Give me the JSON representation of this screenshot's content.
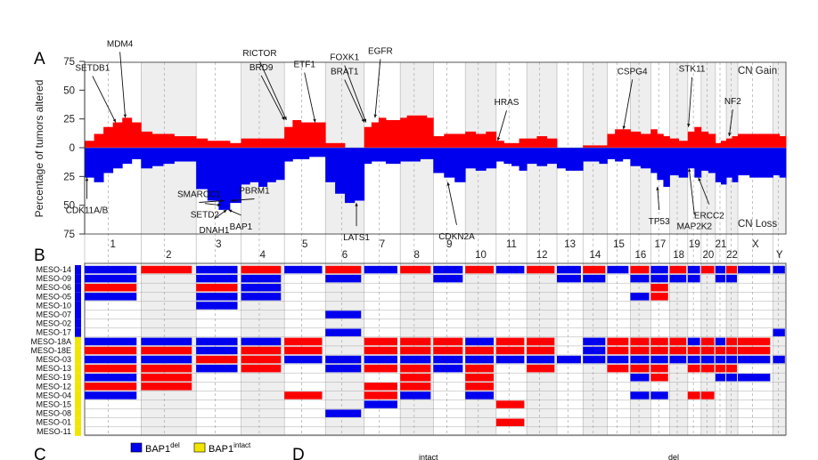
{
  "panel_labels": {
    "a": "A",
    "b": "B",
    "c": "C",
    "d": "D"
  },
  "legend_gain": "CN Gain",
  "legend_loss": "CN Loss",
  "bottom_legend": {
    "del_label": "BAP1",
    "del_sup": "del",
    "intact_label": "BAP1",
    "intact_sup": "intact",
    "del_color": "#0000ee",
    "intact_color": "#f2e600"
  },
  "panel_d_fragments": {
    "left": "intact",
    "right": "del"
  },
  "colors": {
    "gain": "#ff0000",
    "loss": "#0000ee",
    "band": "#eeeeee",
    "neutral": "#f6f6f6"
  },
  "chart_data": {
    "type": "bar",
    "ylabel": "Percentage of tumors altered",
    "yticks": [
      "75",
      "50",
      "25",
      "0",
      "25",
      "50",
      "75"
    ],
    "ylim": [
      -75,
      75
    ],
    "chromosomes_odd": [
      "1",
      "3",
      "5",
      "7",
      "9",
      "11",
      "13",
      "15",
      "17",
      "19",
      "21",
      "X"
    ],
    "chromosomes_even": [
      "2",
      "4",
      "6",
      "8",
      "10",
      "12",
      "14",
      "16",
      "18",
      "20",
      "22",
      "Y"
    ],
    "chromosomes": [
      "1",
      "2",
      "3",
      "4",
      "5",
      "6",
      "7",
      "8",
      "9",
      "10",
      "11",
      "12",
      "13",
      "14",
      "15",
      "16",
      "17",
      "18",
      "19",
      "20",
      "21",
      "22",
      "X",
      "Y"
    ],
    "gain_segments": [
      {
        "chr": "1",
        "values": [
          6,
          12,
          18,
          22,
          26,
          22
        ]
      },
      {
        "chr": "2",
        "values": [
          14,
          12,
          12,
          10,
          10
        ]
      },
      {
        "chr": "3",
        "values": [
          8,
          6,
          6,
          4
        ]
      },
      {
        "chr": "4",
        "values": [
          8,
          8,
          8,
          8,
          8
        ]
      },
      {
        "chr": "5",
        "values": [
          18,
          24,
          22,
          22,
          22
        ]
      },
      {
        "chr": "6",
        "values": [
          4,
          4,
          0,
          0
        ]
      },
      {
        "chr": "7",
        "values": [
          18,
          22,
          26,
          24,
          24
        ]
      },
      {
        "chr": "8",
        "values": [
          26,
          28,
          28,
          28,
          26
        ]
      },
      {
        "chr": "9",
        "values": [
          10,
          12,
          12
        ]
      },
      {
        "chr": "10",
        "values": [
          14,
          12,
          14
        ]
      },
      {
        "chr": "11",
        "values": [
          6,
          4,
          4,
          8
        ]
      },
      {
        "chr": "12",
        "values": [
          8,
          10,
          8
        ]
      },
      {
        "chr": "13",
        "values": [
          0,
          0,
          0
        ]
      },
      {
        "chr": "14",
        "values": [
          2,
          2,
          2
        ]
      },
      {
        "chr": "15",
        "values": [
          12,
          16,
          16
        ]
      },
      {
        "chr": "16",
        "values": [
          14,
          12
        ]
      },
      {
        "chr": "17",
        "values": [
          16,
          12,
          10
        ]
      },
      {
        "chr": "18",
        "values": [
          8,
          6
        ]
      },
      {
        "chr": "19",
        "values": [
          14,
          18
        ]
      },
      {
        "chr": "20",
        "values": [
          14,
          12
        ]
      },
      {
        "chr": "21",
        "values": [
          4,
          6
        ]
      },
      {
        "chr": "22",
        "values": [
          8,
          10
        ]
      },
      {
        "chr": "X",
        "values": [
          12,
          12,
          12
        ]
      },
      {
        "chr": "Y",
        "values": [
          12,
          10
        ]
      }
    ],
    "loss_segments": [
      {
        "chr": "1",
        "values": [
          -26,
          -30,
          -22,
          -18,
          -14,
          -10
        ]
      },
      {
        "chr": "2",
        "values": [
          -18,
          -16,
          -14,
          -12,
          -12
        ]
      },
      {
        "chr": "3",
        "values": [
          -36,
          -46,
          -54,
          -48
        ]
      },
      {
        "chr": "4",
        "values": [
          -32,
          -30,
          -34,
          -30,
          -28
        ]
      },
      {
        "chr": "5",
        "values": [
          -12,
          -10,
          -10,
          -8,
          -8
        ]
      },
      {
        "chr": "6",
        "values": [
          -30,
          -40,
          -48,
          -46
        ]
      },
      {
        "chr": "7",
        "values": [
          -14,
          -12,
          -12,
          -14,
          -14
        ]
      },
      {
        "chr": "8",
        "values": [
          -12,
          -12,
          -12,
          -10,
          -10
        ]
      },
      {
        "chr": "9",
        "values": [
          -22,
          -26,
          -30
        ]
      },
      {
        "chr": "10",
        "values": [
          -18,
          -20,
          -18
        ]
      },
      {
        "chr": "11",
        "values": [
          -12,
          -14,
          -16,
          -20
        ]
      },
      {
        "chr": "12",
        "values": [
          -14,
          -16,
          -14
        ]
      },
      {
        "chr": "13",
        "values": [
          -18,
          -20,
          -20
        ]
      },
      {
        "chr": "14",
        "values": [
          -12,
          -12,
          -14
        ]
      },
      {
        "chr": "15",
        "values": [
          -10,
          -12,
          -10
        ]
      },
      {
        "chr": "16",
        "values": [
          -16,
          -18
        ]
      },
      {
        "chr": "17",
        "values": [
          -22,
          -28,
          -34
        ]
      },
      {
        "chr": "18",
        "values": [
          -24,
          -26
        ]
      },
      {
        "chr": "19",
        "values": [
          -18,
          -26
        ]
      },
      {
        "chr": "20",
        "values": [
          -20,
          -22
        ]
      },
      {
        "chr": "21",
        "values": [
          -30,
          -32
        ]
      },
      {
        "chr": "22",
        "values": [
          -26,
          -30
        ]
      },
      {
        "chr": "X",
        "values": [
          -24,
          -26,
          -26
        ]
      },
      {
        "chr": "Y",
        "values": [
          -24,
          -26
        ]
      }
    ],
    "gene_annotations": [
      {
        "gene": "MDM4",
        "chr": "1",
        "pos": 0.72,
        "value": 26
      },
      {
        "gene": "SETDB1",
        "chr": "1",
        "pos": 0.55,
        "value": 22
      },
      {
        "gene": "CDK11A/B",
        "chr": "1",
        "pos": 0.04,
        "value": -26
      },
      {
        "gene": "SMARCC1",
        "chr": "3",
        "pos": 0.62,
        "value": -46
      },
      {
        "gene": "SETD2",
        "chr": "3",
        "pos": 0.55,
        "value": -50
      },
      {
        "gene": "DNAH1",
        "chr": "3",
        "pos": 0.68,
        "value": -54
      },
      {
        "gene": "PBRM1",
        "chr": "3",
        "pos": 0.78,
        "value": -46
      },
      {
        "gene": "BAP1",
        "chr": "3",
        "pos": 0.72,
        "value": -54
      },
      {
        "gene": "RICTOR",
        "chr": "5",
        "pos": 0.05,
        "value": 24
      },
      {
        "gene": "BRD9",
        "chr": "5",
        "pos": 0.0,
        "value": 24
      },
      {
        "gene": "ETF1",
        "chr": "5",
        "pos": 0.75,
        "value": 22
      },
      {
        "gene": "LATS1",
        "chr": "6",
        "pos": 0.8,
        "value": -48
      },
      {
        "gene": "FOXK1",
        "chr": "7",
        "pos": 0.05,
        "value": 22
      },
      {
        "gene": "BRAT1",
        "chr": "7",
        "pos": 0.0,
        "value": 22
      },
      {
        "gene": "EGFR",
        "chr": "7",
        "pos": 0.3,
        "value": 26
      },
      {
        "gene": "CDKN2A",
        "chr": "9",
        "pos": 0.45,
        "value": -30
      },
      {
        "gene": "HRAS",
        "chr": "11",
        "pos": 0.05,
        "value": 6
      },
      {
        "gene": "CSPG4",
        "chr": "15",
        "pos": 0.7,
        "value": 16
      },
      {
        "gene": "TP53",
        "chr": "17",
        "pos": 0.35,
        "value": -34
      },
      {
        "gene": "STK11",
        "chr": "19",
        "pos": 0.05,
        "value": 18
      },
      {
        "gene": "ERCC2",
        "chr": "19",
        "pos": 0.8,
        "value": -26
      },
      {
        "gene": "MAP2K2",
        "chr": "19",
        "pos": 0.1,
        "value": -18
      },
      {
        "gene": "NF2",
        "chr": "22",
        "pos": 0.25,
        "value": 10
      }
    ]
  },
  "heatmap": {
    "samples": [
      "MESO-14",
      "MESO-09",
      "MESO-06",
      "MESO-05",
      "MESO-10",
      "MESO-07",
      "MESO-02",
      "MESO-17",
      "MESO-18A",
      "MESO-18E",
      "MESO-03",
      "MESO-13",
      "MESO-19",
      "MESO-12",
      "MESO-04",
      "MESO-15",
      "MESO-08",
      "MESO-01",
      "MESO-11"
    ],
    "bap1_status": [
      "del",
      "del",
      "del",
      "del",
      "del",
      "del",
      "del",
      "del",
      "intact",
      "intact",
      "intact",
      "intact",
      "intact",
      "intact",
      "intact",
      "intact",
      "intact",
      "intact",
      "intact"
    ],
    "rows": [
      [
        [
          "1",
          "L"
        ],
        [
          "2",
          "G"
        ],
        [
          "3",
          "L"
        ],
        [
          "4",
          "G"
        ],
        [
          "5",
          "L"
        ],
        [
          "6",
          "G"
        ],
        [
          "7",
          "L"
        ],
        [
          "8",
          "G"
        ],
        [
          "9",
          "L"
        ],
        [
          "10",
          "G"
        ],
        [
          "11",
          "L"
        ],
        [
          "12",
          "G"
        ],
        [
          "13",
          "L"
        ],
        [
          "14",
          "G"
        ],
        [
          "15",
          "L"
        ],
        [
          "16",
          "G"
        ],
        [
          "17",
          "L"
        ],
        [
          "18",
          "G"
        ],
        [
          "19",
          "L"
        ],
        [
          "20",
          "G"
        ],
        [
          "21",
          "L"
        ],
        [
          "22",
          "G"
        ],
        [
          "X",
          "L"
        ],
        [
          "Y",
          "L"
        ]
      ],
      [
        [
          "1",
          "L"
        ],
        [
          "3",
          "L"
        ],
        [
          "4",
          "L"
        ],
        [
          "6",
          "L"
        ],
        [
          "9",
          "L"
        ],
        [
          "13",
          "L"
        ],
        [
          "14",
          "L"
        ],
        [
          "16",
          "L"
        ],
        [
          "17",
          "L"
        ],
        [
          "18",
          "L"
        ],
        [
          "19",
          "L"
        ],
        [
          "21",
          "L"
        ],
        [
          "22",
          "L"
        ]
      ],
      [
        [
          "1",
          "G"
        ],
        [
          "3",
          "G"
        ],
        [
          "4",
          "L"
        ],
        [
          "17",
          "G"
        ]
      ],
      [
        [
          "1",
          "L"
        ],
        [
          "3",
          "L"
        ],
        [
          "4",
          "L"
        ],
        [
          "16",
          "L"
        ],
        [
          "17",
          "G"
        ]
      ],
      [
        [
          "3",
          "L"
        ]
      ],
      [
        [
          "6",
          "L"
        ]
      ],
      [],
      [
        [
          "6",
          "L"
        ],
        [
          "Y",
          "L"
        ]
      ],
      [
        [
          "1",
          "L"
        ],
        [
          "2",
          "L"
        ],
        [
          "3",
          "L"
        ],
        [
          "4",
          "L"
        ],
        [
          "5",
          "G"
        ],
        [
          "7",
          "G"
        ],
        [
          "8",
          "G"
        ],
        [
          "9",
          "G"
        ],
        [
          "10",
          "L"
        ],
        [
          "11",
          "G"
        ],
        [
          "12",
          "G"
        ],
        [
          "14",
          "L"
        ],
        [
          "15",
          "G"
        ],
        [
          "16",
          "G"
        ],
        [
          "17",
          "G"
        ],
        [
          "18",
          "G"
        ],
        [
          "19",
          "L"
        ],
        [
          "20",
          "G"
        ],
        [
          "21",
          "L"
        ],
        [
          "22",
          "G"
        ],
        [
          "X",
          "G"
        ]
      ],
      [
        [
          "1",
          "G"
        ],
        [
          "2",
          "G"
        ],
        [
          "3",
          "L"
        ],
        [
          "4",
          "G"
        ],
        [
          "5",
          "G"
        ],
        [
          "7",
          "G"
        ],
        [
          "8",
          "G"
        ],
        [
          "9",
          "G"
        ],
        [
          "10",
          "G"
        ],
        [
          "11",
          "G"
        ],
        [
          "12",
          "G"
        ],
        [
          "14",
          "L"
        ],
        [
          "15",
          "G"
        ],
        [
          "16",
          "G"
        ],
        [
          "17",
          "G"
        ],
        [
          "18",
          "G"
        ],
        [
          "19",
          "G"
        ],
        [
          "20",
          "G"
        ],
        [
          "21",
          "G"
        ],
        [
          "22",
          "G"
        ],
        [
          "X",
          "G"
        ]
      ],
      [
        [
          "1",
          "L"
        ],
        [
          "2",
          "L"
        ],
        [
          "3",
          "G"
        ],
        [
          "4",
          "G"
        ],
        [
          "5",
          "L"
        ],
        [
          "6",
          "L"
        ],
        [
          "7",
          "L"
        ],
        [
          "8",
          "L"
        ],
        [
          "9",
          "L"
        ],
        [
          "10",
          "L"
        ],
        [
          "11",
          "L"
        ],
        [
          "12",
          "L"
        ],
        [
          "13",
          "L"
        ],
        [
          "14",
          "L"
        ],
        [
          "15",
          "L"
        ],
        [
          "16",
          "L"
        ],
        [
          "17",
          "L"
        ],
        [
          "18",
          "L"
        ],
        [
          "19",
          "L"
        ],
        [
          "20",
          "L"
        ],
        [
          "21",
          "L"
        ],
        [
          "22",
          "L"
        ],
        [
          "X",
          "L"
        ],
        [
          "Y",
          "L"
        ]
      ],
      [
        [
          "1",
          "G"
        ],
        [
          "2",
          "G"
        ],
        [
          "3",
          "L"
        ],
        [
          "4",
          "G"
        ],
        [
          "6",
          "L"
        ],
        [
          "7",
          "G"
        ],
        [
          "8",
          "G"
        ],
        [
          "9",
          "L"
        ],
        [
          "10",
          "G"
        ],
        [
          "12",
          "G"
        ],
        [
          "15",
          "G"
        ],
        [
          "16",
          "G"
        ],
        [
          "17",
          "G"
        ],
        [
          "19",
          "G"
        ],
        [
          "20",
          "G"
        ],
        [
          "21",
          "G"
        ],
        [
          "22",
          "G"
        ]
      ],
      [
        [
          "1",
          "L"
        ],
        [
          "2",
          "G"
        ],
        [
          "8",
          "G"
        ],
        [
          "10",
          "G"
        ],
        [
          "16",
          "L"
        ],
        [
          "17",
          "G"
        ],
        [
          "21",
          "L"
        ],
        [
          "22",
          "L"
        ],
        [
          "X",
          "L"
        ]
      ],
      [
        [
          "1",
          "G"
        ],
        [
          "2",
          "G"
        ],
        [
          "7",
          "G"
        ],
        [
          "8",
          "G"
        ],
        [
          "10",
          "G"
        ]
      ],
      [
        [
          "1",
          "L"
        ],
        [
          "5",
          "G"
        ],
        [
          "7",
          "G"
        ],
        [
          "8",
          "L"
        ],
        [
          "10",
          "L"
        ],
        [
          "16",
          "L"
        ],
        [
          "17",
          "L"
        ],
        [
          "19",
          "G"
        ],
        [
          "20",
          "G"
        ]
      ],
      [
        [
          "7",
          "L"
        ],
        [
          "11",
          "G"
        ]
      ],
      [
        [
          "6",
          "L"
        ]
      ],
      [
        [
          "11",
          "G"
        ]
      ],
      []
    ]
  }
}
